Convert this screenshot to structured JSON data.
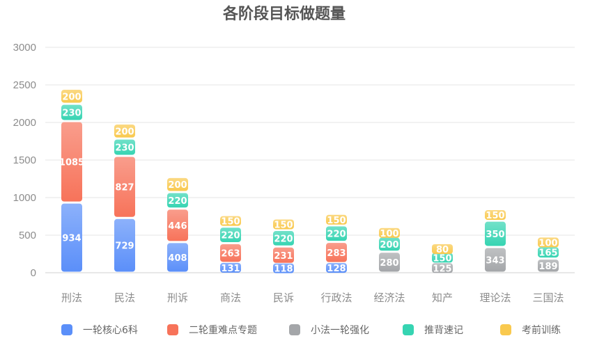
{
  "chart_data": {
    "type": "bar",
    "stacked": true,
    "title": "各阶段目标做题量",
    "ylim": [
      0,
      3000
    ],
    "yticks": [
      0,
      500,
      1000,
      1500,
      2000,
      2500,
      3000
    ],
    "grid": true,
    "legend_position": "bottom",
    "categories": [
      "刑法",
      "民法",
      "刑诉",
      "商法",
      "民诉",
      "行政法",
      "经济法",
      "知产",
      "理论法",
      "三国法"
    ],
    "series": [
      {
        "name": "一轮核心6科",
        "color": "#5b8ff9",
        "values": [
          934,
          729,
          408,
          131,
          118,
          128,
          0,
          0,
          0,
          0
        ]
      },
      {
        "name": "二轮重难点专题",
        "color": "#f7735a",
        "values": [
          1085,
          827,
          446,
          263,
          231,
          283,
          0,
          0,
          0,
          0
        ]
      },
      {
        "name": "小法一轮强化",
        "color": "#a4a6a9",
        "values": [
          0,
          0,
          0,
          0,
          0,
          0,
          280,
          125,
          343,
          189
        ]
      },
      {
        "name": "推背速记",
        "color": "#36d4b2",
        "values": [
          230,
          230,
          220,
          220,
          220,
          220,
          200,
          150,
          350,
          165
        ]
      },
      {
        "name": "考前训练",
        "color": "#f9c94e",
        "values": [
          200,
          200,
          200,
          150,
          150,
          150,
          100,
          80,
          150,
          100
        ]
      }
    ]
  }
}
